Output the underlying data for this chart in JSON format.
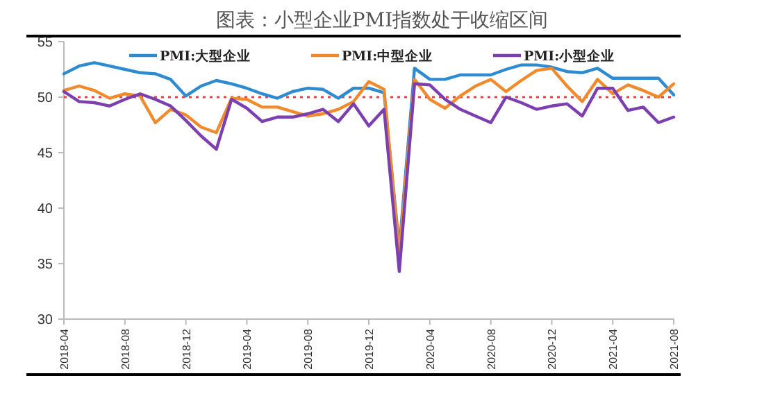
{
  "chart_data": {
    "type": "line",
    "title": "图表：小型企业PMI指数处于收缩区间",
    "x": [
      "2018-04",
      "2018-05",
      "2018-06",
      "2018-07",
      "2018-08",
      "2018-09",
      "2018-10",
      "2018-11",
      "2018-12",
      "2019-01",
      "2019-02",
      "2019-03",
      "2019-04",
      "2019-05",
      "2019-06",
      "2019-07",
      "2019-08",
      "2019-09",
      "2019-10",
      "2019-11",
      "2019-12",
      "2020-01",
      "2020-02",
      "2020-03",
      "2020-04",
      "2020-05",
      "2020-06",
      "2020-07",
      "2020-08",
      "2020-09",
      "2020-10",
      "2020-11",
      "2020-12",
      "2021-01",
      "2021-02",
      "2021-03",
      "2021-04",
      "2021-05",
      "2021-06",
      "2021-07",
      "2021-08"
    ],
    "series": [
      {
        "name": "PMI:大型企业",
        "color": "#2e8bd0",
        "values": [
          52.1,
          52.8,
          53.1,
          52.8,
          52.5,
          52.2,
          52.1,
          51.6,
          50.1,
          51.0,
          51.5,
          51.2,
          50.8,
          50.3,
          49.9,
          50.5,
          50.8,
          50.7,
          49.9,
          50.8,
          50.8,
          50.4,
          36.4,
          52.6,
          51.6,
          51.6,
          52.0,
          52.0,
          52.0,
          52.5,
          52.9,
          52.9,
          52.7,
          52.3,
          52.2,
          52.6,
          51.7,
          51.7,
          51.7,
          51.7,
          50.2
        ]
      },
      {
        "name": "PMI:中型企业",
        "color": "#f08a2c",
        "values": [
          50.6,
          51.0,
          50.6,
          49.9,
          50.3,
          50.1,
          47.7,
          48.9,
          48.4,
          47.3,
          46.8,
          49.9,
          49.8,
          49.1,
          49.1,
          48.7,
          48.3,
          48.5,
          48.9,
          49.6,
          51.4,
          50.7,
          35.9,
          51.6,
          49.8,
          49.0,
          50.1,
          51.0,
          51.6,
          50.5,
          51.5,
          52.4,
          52.6,
          51.0,
          49.6,
          51.6,
          50.3,
          51.1,
          50.6,
          50.0,
          51.2
        ]
      },
      {
        "name": "PMI:小型企业",
        "color": "#7b3fb0",
        "values": [
          50.5,
          49.6,
          49.5,
          49.2,
          49.8,
          50.3,
          49.8,
          49.2,
          47.9,
          46.5,
          45.3,
          49.8,
          49.0,
          47.8,
          48.2,
          48.2,
          48.5,
          48.9,
          47.8,
          49.4,
          47.4,
          48.9,
          34.3,
          51.2,
          51.1,
          49.8,
          48.9,
          48.3,
          47.7,
          50.0,
          49.5,
          48.9,
          49.2,
          49.4,
          48.3,
          50.8,
          50.8,
          48.8,
          49.1,
          47.7,
          48.2
        ]
      }
    ],
    "xlim": [
      "2018-04",
      "2021-08"
    ],
    "xticks": [
      "2018-04",
      "2018-08",
      "2018-12",
      "2019-04",
      "2019-08",
      "2019-12",
      "2020-04",
      "2020-08",
      "2020-12",
      "2021-04",
      "2021-08"
    ],
    "ylim": [
      30,
      55
    ],
    "yticks": [
      30,
      35,
      40,
      45,
      50,
      55
    ],
    "ref_lines": [
      {
        "axis": "y",
        "value": 50,
        "color": "#e84040",
        "line_style": "dotted"
      }
    ],
    "legend": "top",
    "grid": false,
    "marker": "none",
    "line_style": "solid"
  }
}
